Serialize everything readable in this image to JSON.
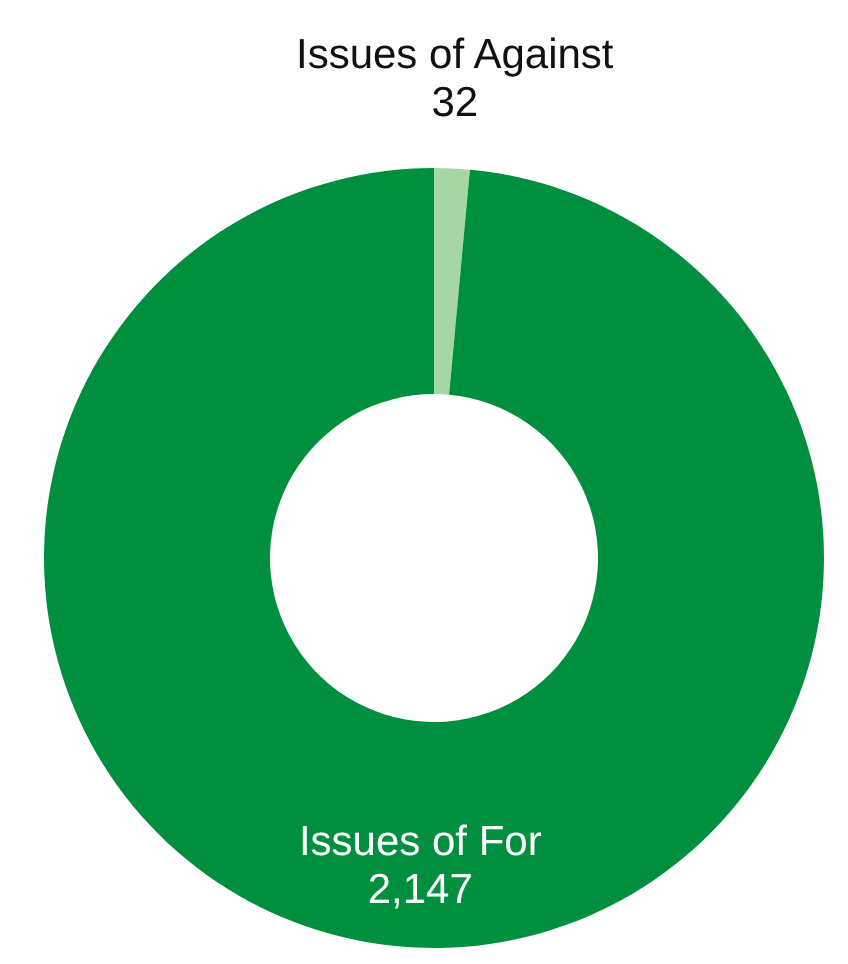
{
  "chart_data": {
    "type": "donut",
    "categories": [
      "Issues of Against",
      "Issues of For"
    ],
    "values": [
      32,
      2147
    ],
    "colors": [
      "#a6d5a6",
      "#008f3e"
    ],
    "value_labels": [
      "32",
      "2,147"
    ],
    "legend": false
  }
}
